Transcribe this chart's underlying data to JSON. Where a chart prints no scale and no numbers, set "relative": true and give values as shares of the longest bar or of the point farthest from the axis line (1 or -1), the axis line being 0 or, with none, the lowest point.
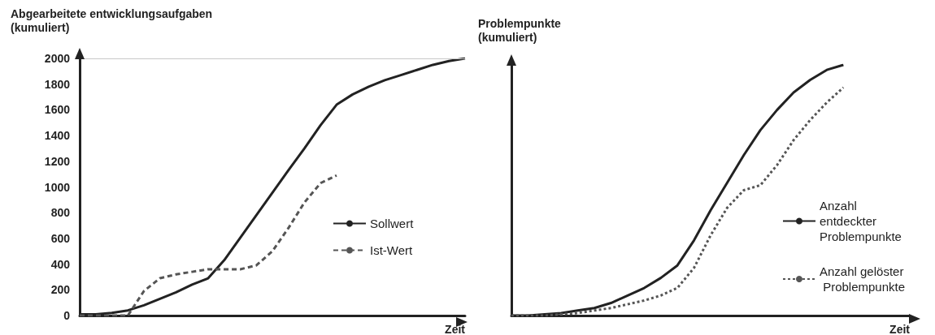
{
  "chart_data": [
    {
      "type": "line",
      "ylabel": "Abgearbeitete entwicklungsaufgaben (kumuliert)",
      "xlabel": "Zeit",
      "categories": [
        null,
        null,
        null,
        null,
        null,
        null,
        null,
        null,
        null,
        null,
        null,
        null,
        null,
        null,
        null,
        null,
        null,
        null,
        null,
        null,
        null,
        null,
        null,
        null,
        null
      ],
      "series": [
        {
          "name": "Sollwert",
          "color": "#222222",
          "line_style": "solid",
          "values": [
            10,
            10,
            20,
            40,
            80,
            130,
            180,
            240,
            290,
            430,
            605,
            780,
            955,
            1130,
            1300,
            1480,
            1640,
            1720,
            1780,
            1830,
            1870,
            1910,
            1950,
            1980,
            2000
          ]
        },
        {
          "name": "Ist-Wert",
          "color": "#555555",
          "line_style": "dashed",
          "values": [
            0,
            0,
            0,
            0,
            190,
            290,
            320,
            340,
            360,
            360,
            360,
            390,
            500,
            680,
            880,
            1030,
            1090,
            null,
            null,
            null,
            null,
            null,
            null,
            null,
            null
          ]
        }
      ],
      "ylim": [
        0,
        2000
      ],
      "yticks": [
        0,
        200,
        400,
        600,
        800,
        1000,
        1200,
        1400,
        1600,
        1800,
        2000
      ],
      "grid": false,
      "legend": "bottom right",
      "marker": "none",
      "ref_lines": [
        {
          "axis": "y",
          "value": 2000,
          "color": "#c8c8c8"
        }
      ]
    },
    {
      "type": "line",
      "relative": true,
      "ylabel": "Problempunkte (kumuliert)",
      "xlabel": "Zeit",
      "categories": [
        null,
        null,
        null,
        null,
        null,
        null,
        null,
        null,
        null,
        null,
        null,
        null,
        null,
        null,
        null,
        null,
        null,
        null,
        null,
        null,
        null,
        null,
        null,
        null,
        null
      ],
      "series": [
        {
          "name": "Anzahl entdeckter Problempunkte",
          "color": "#222222",
          "line_style": "solid",
          "values": [
            0,
            0,
            0.005,
            0.01,
            0.02,
            0.03,
            0.05,
            0.08,
            0.11,
            0.15,
            0.2,
            0.3,
            0.42,
            0.53,
            0.64,
            0.74,
            0.82,
            0.89,
            0.94,
            0.98,
            1.0,
            null,
            null,
            null,
            null
          ]
        },
        {
          "name": "Anzahl gelöster Problempunkte",
          "color": "#555555",
          "line_style": "dotted",
          "values": [
            0,
            0,
            0,
            0.005,
            0.01,
            0.02,
            0.03,
            0.045,
            0.06,
            0.08,
            0.11,
            0.19,
            0.32,
            0.43,
            0.5,
            0.52,
            0.6,
            0.7,
            0.78,
            0.85,
            0.91,
            null,
            null,
            null,
            null
          ]
        }
      ],
      "grid": false,
      "legend": "bottom right",
      "marker": "none"
    }
  ]
}
